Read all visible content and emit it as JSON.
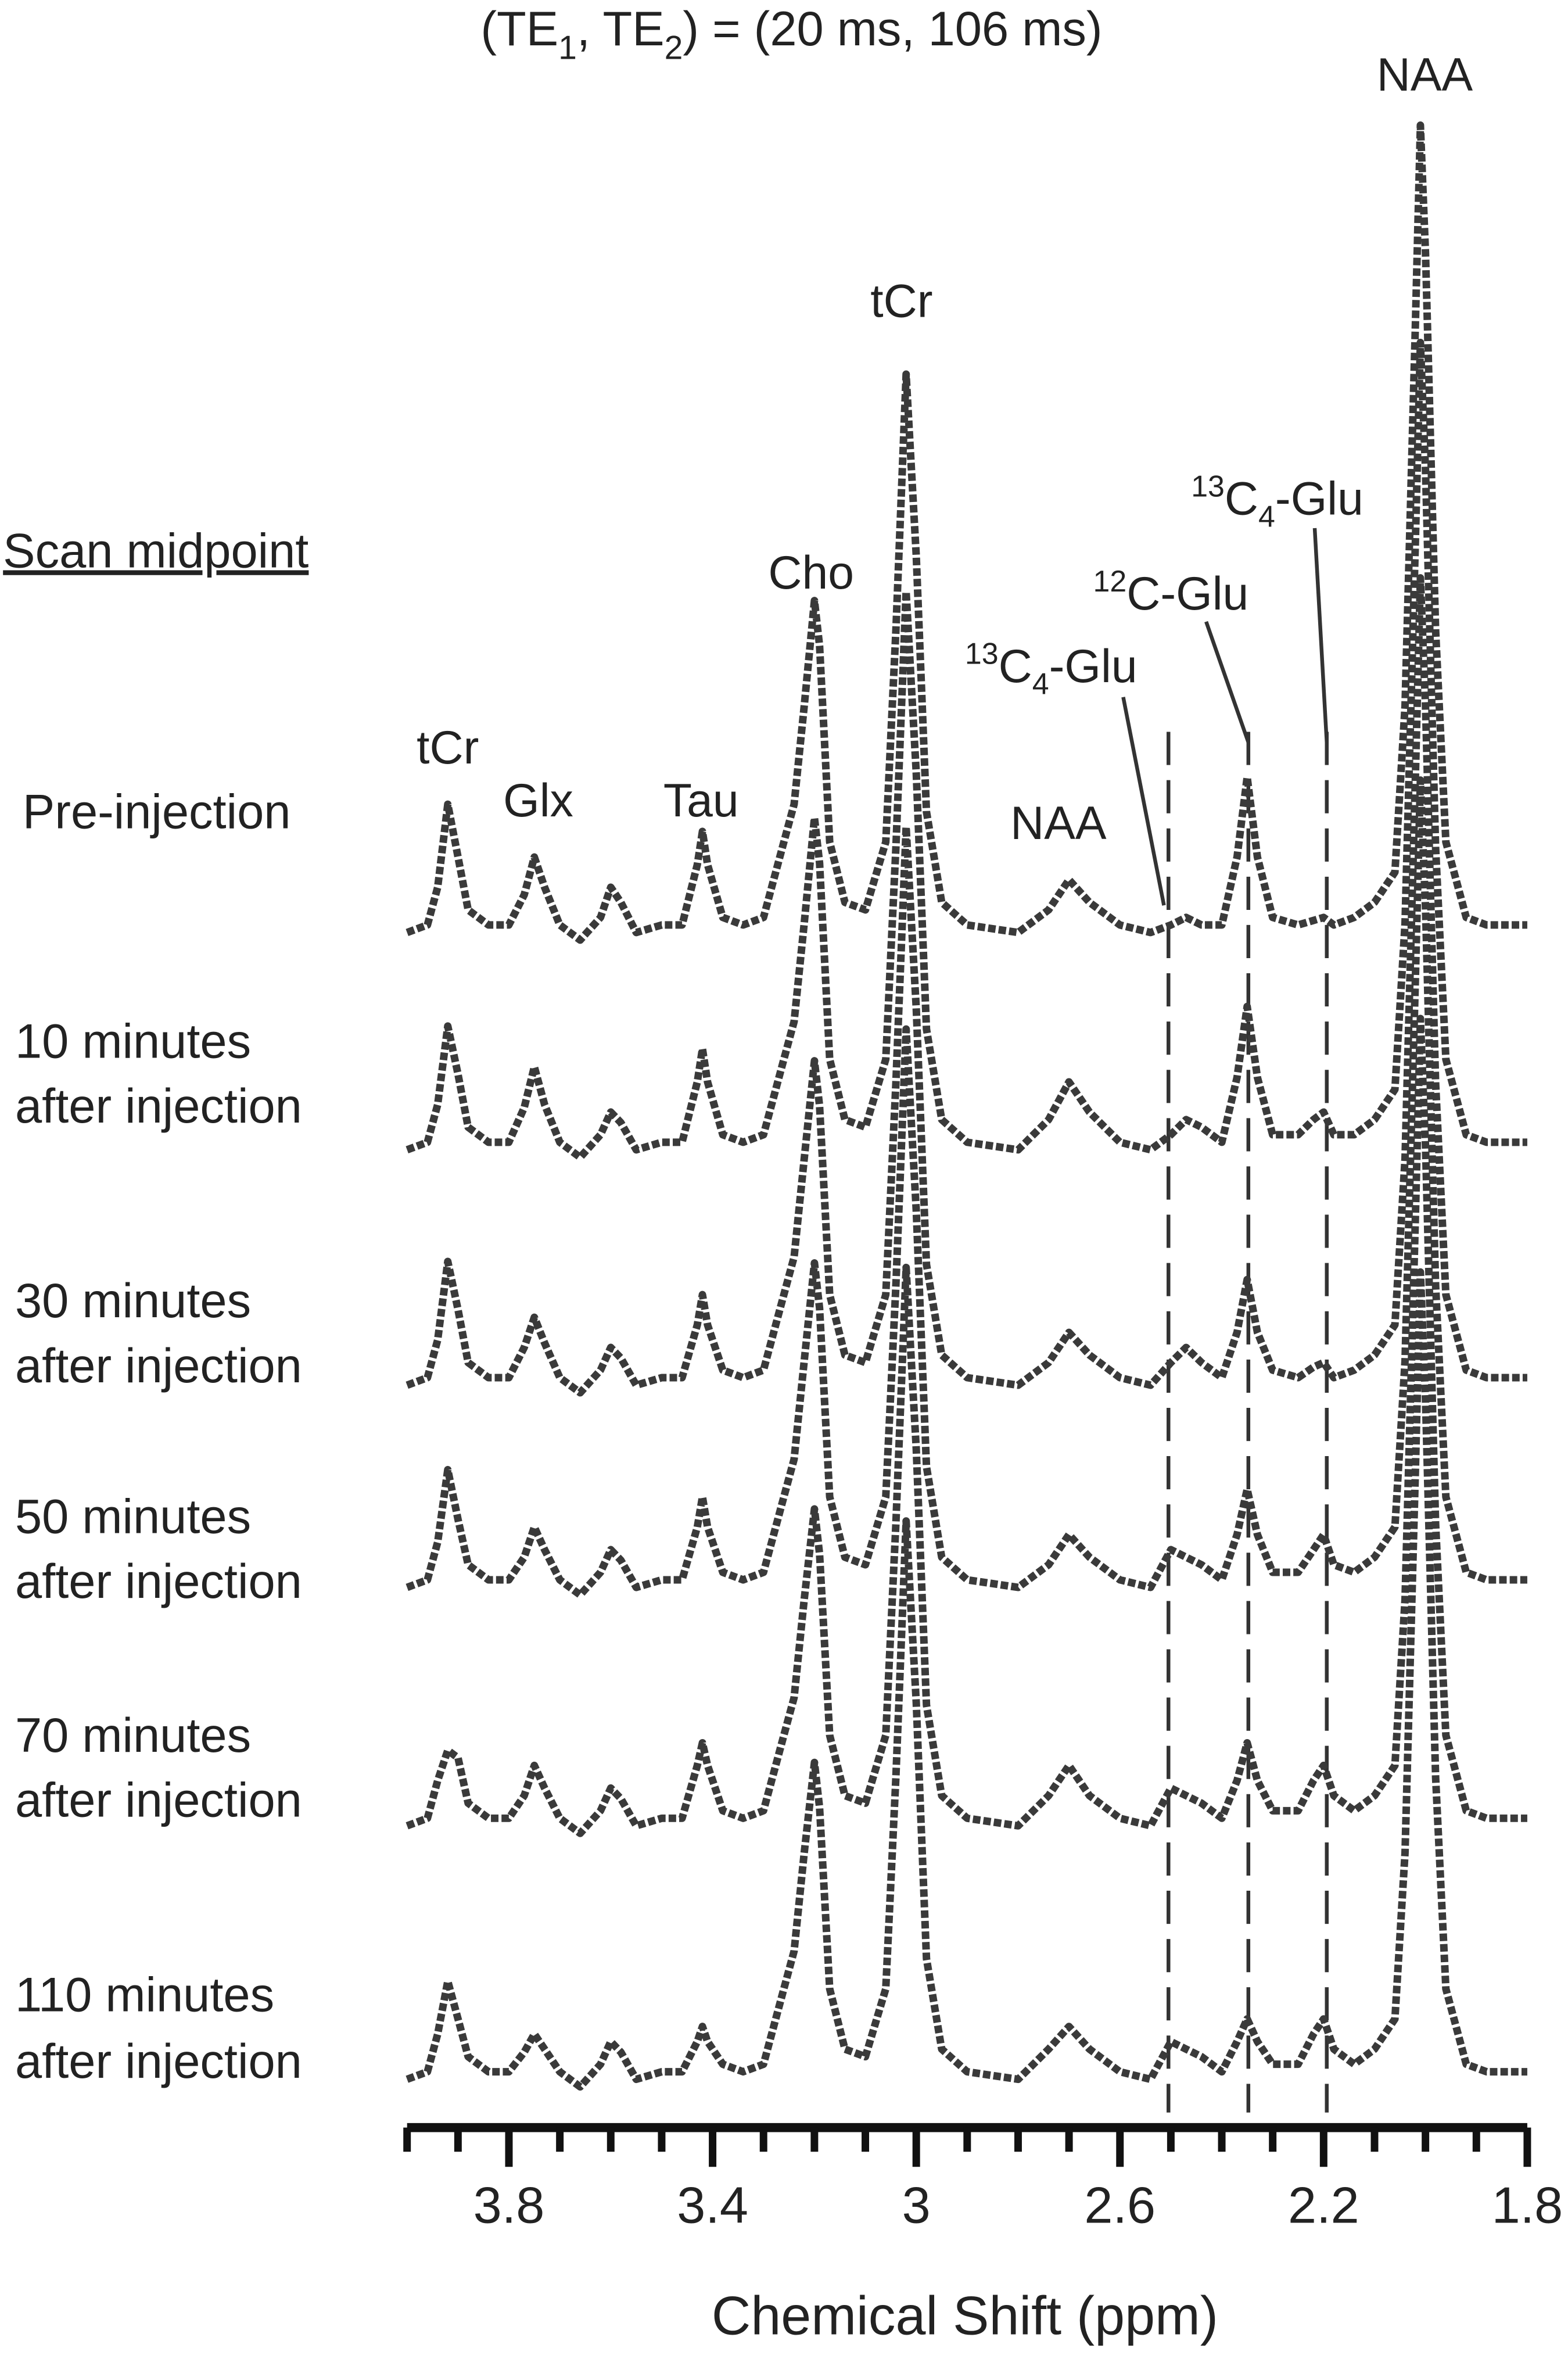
{
  "chart_data": {
    "type": "line",
    "title": [
      "(TE",
      "1",
      ", TE",
      "2",
      ") = (20 ms, 106 ms)"
    ],
    "legend_title": "Scan midpoint",
    "x_label": "Chemical Shift (ppm)",
    "xlim": [
      4.0,
      1.8
    ],
    "xticks": [
      3.8,
      3.4,
      3.0,
      2.6,
      2.2,
      1.8
    ],
    "minor_xticks": [
      4.0,
      3.9,
      3.7,
      3.6,
      3.5,
      3.3,
      3.2,
      3.1,
      2.9,
      2.8,
      2.7,
      2.5,
      2.4,
      2.3,
      2.1,
      2.0,
      1.9
    ],
    "annotations": {
      "naa_main": "NAA",
      "tcr_main": "tCr",
      "cho": "Cho",
      "tau": "Tau",
      "glx": "Glx",
      "tcr_left": "tCr",
      "naa_small": "NAA",
      "c13_glu_left": [
        "13",
        "C",
        "4",
        "-Glu"
      ],
      "c12_glu": [
        "12",
        "C-Glu"
      ],
      "c13_glu_right": [
        "13",
        "C",
        "4",
        "-Glu"
      ]
    },
    "x": [
      4.0,
      3.96,
      3.94,
      3.92,
      3.9,
      3.88,
      3.84,
      3.8,
      3.77,
      3.75,
      3.73,
      3.7,
      3.66,
      3.62,
      3.6,
      3.58,
      3.55,
      3.5,
      3.46,
      3.43,
      3.42,
      3.41,
      3.38,
      3.34,
      3.3,
      3.26,
      3.24,
      3.22,
      3.2,
      3.19,
      3.17,
      3.14,
      3.1,
      3.06,
      3.04,
      3.02,
      3.0,
      2.98,
      2.95,
      2.9,
      2.8,
      2.74,
      2.7,
      2.66,
      2.6,
      2.54,
      2.5,
      2.47,
      2.44,
      2.4,
      2.37,
      2.35,
      2.33,
      2.3,
      2.25,
      2.22,
      2.2,
      2.18,
      2.14,
      2.1,
      2.06,
      2.04,
      2.02,
      2.01,
      2.0,
      1.98,
      1.96,
      1.92,
      1.88,
      1.84,
      1.8
    ],
    "series": [
      {
        "label_lines": [
          "Pre-injection"
        ],
        "color": "#3a3a3a",
        "values": [
          0,
          5,
          30,
          85,
          50,
          15,
          5,
          5,
          25,
          50,
          30,
          5,
          -5,
          10,
          30,
          20,
          0,
          5,
          5,
          45,
          67,
          45,
          10,
          5,
          10,
          60,
          85,
          150,
          220,
          190,
          60,
          20,
          15,
          60,
          200,
          370,
          250,
          80,
          20,
          5,
          0,
          15,
          35,
          20,
          5,
          0,
          5,
          10,
          5,
          5,
          50,
          103,
          50,
          10,
          5,
          8,
          10,
          5,
          10,
          20,
          40,
          150,
          400,
          535,
          450,
          200,
          60,
          10,
          5,
          5,
          5
        ]
      },
      {
        "label_lines": [
          "10 minutes",
          "after injection"
        ],
        "color": "#3a3a3a",
        "values": [
          0,
          5,
          30,
          82,
          50,
          15,
          5,
          5,
          28,
          55,
          30,
          5,
          -5,
          10,
          25,
          18,
          0,
          5,
          5,
          45,
          67,
          45,
          10,
          5,
          10,
          60,
          85,
          150,
          220,
          190,
          60,
          20,
          15,
          60,
          200,
          370,
          250,
          80,
          20,
          5,
          0,
          20,
          45,
          25,
          5,
          0,
          10,
          20,
          15,
          5,
          48,
          95,
          48,
          10,
          10,
          20,
          25,
          10,
          10,
          20,
          40,
          150,
          400,
          535,
          450,
          200,
          60,
          10,
          5,
          5,
          5
        ]
      },
      {
        "label_lines": [
          "30 minutes",
          "after injection"
        ],
        "color": "#3a3a3a",
        "values": [
          0,
          5,
          30,
          82,
          50,
          15,
          5,
          5,
          25,
          45,
          28,
          5,
          -5,
          10,
          25,
          18,
          0,
          5,
          5,
          40,
          60,
          40,
          10,
          5,
          10,
          60,
          85,
          150,
          215,
          185,
          60,
          20,
          15,
          60,
          200,
          370,
          250,
          80,
          20,
          5,
          0,
          15,
          35,
          20,
          5,
          0,
          15,
          25,
          15,
          5,
          35,
          70,
          35,
          10,
          5,
          12,
          15,
          5,
          10,
          20,
          40,
          150,
          400,
          535,
          450,
          200,
          60,
          10,
          5,
          5,
          5
        ]
      },
      {
        "label_lines": [
          "50 minutes",
          "after injection"
        ],
        "color": "#3a3a3a",
        "values": [
          0,
          5,
          30,
          78,
          45,
          15,
          5,
          5,
          20,
          40,
          25,
          5,
          -5,
          10,
          25,
          18,
          0,
          5,
          5,
          40,
          60,
          40,
          10,
          5,
          10,
          60,
          85,
          150,
          215,
          185,
          60,
          20,
          15,
          60,
          200,
          370,
          250,
          80,
          20,
          5,
          0,
          15,
          35,
          20,
          5,
          0,
          25,
          20,
          15,
          5,
          35,
          65,
          35,
          10,
          10,
          25,
          35,
          15,
          10,
          20,
          40,
          150,
          400,
          535,
          450,
          200,
          60,
          10,
          5,
          5,
          5
        ]
      },
      {
        "label_lines": [
          "70 minutes",
          "after injection"
        ],
        "color": "#3a3a3a",
        "values": [
          0,
          5,
          30,
          50,
          45,
          15,
          5,
          5,
          20,
          40,
          25,
          5,
          -5,
          10,
          25,
          18,
          0,
          5,
          5,
          40,
          55,
          40,
          10,
          5,
          10,
          60,
          85,
          150,
          210,
          180,
          60,
          20,
          15,
          60,
          200,
          370,
          250,
          80,
          20,
          5,
          0,
          20,
          40,
          20,
          5,
          0,
          25,
          20,
          15,
          5,
          30,
          55,
          30,
          10,
          10,
          30,
          40,
          20,
          10,
          20,
          40,
          150,
          400,
          535,
          450,
          200,
          60,
          10,
          5,
          5,
          5
        ]
      },
      {
        "label_lines": [
          "110 minutes",
          "after injection"
        ],
        "color": "#3a3a3a",
        "values": [
          0,
          5,
          30,
          65,
          40,
          15,
          5,
          5,
          18,
          30,
          20,
          5,
          -5,
          10,
          25,
          18,
          0,
          5,
          5,
          25,
          35,
          25,
          10,
          5,
          10,
          60,
          85,
          150,
          210,
          180,
          60,
          20,
          15,
          60,
          200,
          370,
          250,
          80,
          20,
          5,
          0,
          20,
          35,
          20,
          5,
          0,
          25,
          20,
          15,
          5,
          25,
          40,
          25,
          10,
          10,
          30,
          40,
          20,
          10,
          20,
          40,
          150,
          400,
          535,
          450,
          200,
          60,
          10,
          5,
          5,
          5
        ]
      }
    ]
  }
}
